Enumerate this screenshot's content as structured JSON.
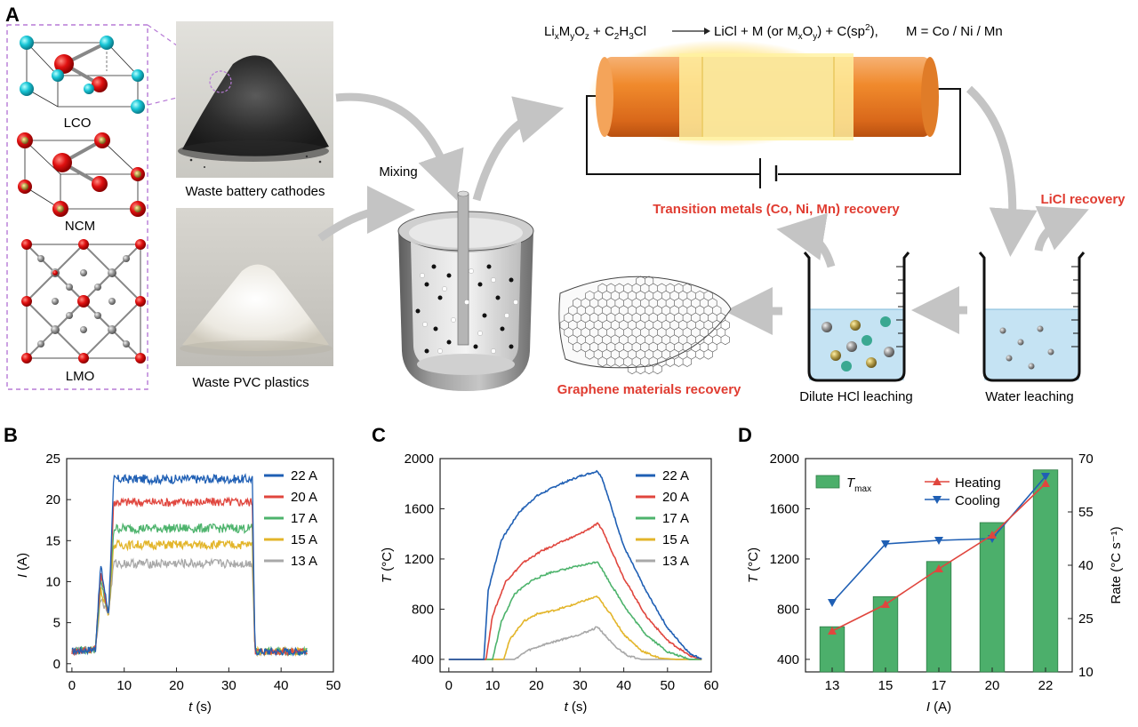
{
  "panels": {
    "A": {
      "letter": "A",
      "structures": [
        "LCO",
        "NCM",
        "LMO"
      ],
      "waste_cathodes": "Waste battery cathodes",
      "waste_pvc": "Waste PVC plastics",
      "mixing": "Mixing",
      "equation": {
        "li": "Li",
        "x1": "x",
        "m": "M",
        "y1": "y",
        "o": "O",
        "z1": "z",
        "plus_c": " + C",
        "c_sub": "2",
        "h": "H",
        "h_sub": "3",
        "cl": "Cl",
        "products_a": "LiCl + M (or M",
        "px": "x",
        "po": "O",
        "py": "y",
        "products_b": ") + C(sp",
        "sp2": "2",
        "products_c": "),",
        "m_def": "M = Co / Ni / Mn"
      },
      "transition_metals": "Transition metals (Co, Ni, Mn) recovery",
      "licl_recovery": "LiCl recovery",
      "graphene_recovery": "Graphene materials recovery",
      "dilute_hcl": "Dilute HCl leaching",
      "water_leaching": "Water leaching"
    },
    "B": {
      "letter": "B"
    },
    "C": {
      "letter": "C"
    },
    "D": {
      "letter": "D"
    }
  },
  "colors": {
    "s22": "#1f5fb4",
    "s20": "#e0463e",
    "s17": "#4db36c",
    "s15": "#e3b52a",
    "s13": "#a8a8a8",
    "bar": "#4caf6b",
    "heating": "#e0463e",
    "cooling": "#1f5fb4",
    "recovery_text": "#e03c31"
  },
  "chart_data": [
    {
      "type": "line",
      "xlabel": "t (s)",
      "ylabel": "I (A)",
      "x_var": "t",
      "x_unit": "(s)",
      "y_var": "I",
      "y_unit": "(A)",
      "xlim": [
        -1,
        50
      ],
      "ylim": [
        -1,
        25
      ],
      "xticks": [
        0,
        10,
        20,
        30,
        40,
        50
      ],
      "yticks": [
        0,
        5,
        10,
        15,
        20,
        25
      ],
      "legend_position": "top-right",
      "series": [
        {
          "name": "22 A",
          "x": [
            0,
            4.5,
            5.5,
            7,
            8,
            20,
            34.5,
            35,
            45
          ],
          "y": [
            1.5,
            1.8,
            12,
            6,
            22.5,
            22.5,
            22.5,
            1.5,
            1.5
          ]
        },
        {
          "name": "20 A",
          "x": [
            0,
            4.5,
            5.5,
            7,
            8,
            20,
            34.5,
            35,
            45
          ],
          "y": [
            1.5,
            1.8,
            11,
            6,
            19.7,
            19.7,
            19.7,
            1.5,
            1.5
          ]
        },
        {
          "name": "17 A",
          "x": [
            0,
            4.5,
            5.5,
            7,
            8,
            20,
            34.5,
            35,
            45
          ],
          "y": [
            1.5,
            1.8,
            10,
            6,
            16.5,
            16.5,
            16.5,
            1.5,
            1.5
          ]
        },
        {
          "name": "15 A",
          "x": [
            0,
            4.5,
            5.5,
            7,
            8,
            20,
            34.5,
            35,
            45
          ],
          "y": [
            1.5,
            1.8,
            9,
            6,
            14.5,
            14.5,
            14.5,
            1.5,
            1.5
          ]
        },
        {
          "name": "13 A",
          "x": [
            0,
            4.5,
            5.5,
            7,
            8,
            20,
            34.5,
            35,
            45
          ],
          "y": [
            1.5,
            1.8,
            8,
            6,
            12.2,
            12.2,
            12.2,
            1.5,
            1.5
          ]
        }
      ]
    },
    {
      "type": "line",
      "xlabel": "t (s)",
      "ylabel": "T (°C)",
      "x_var": "t",
      "x_unit": "(s)",
      "y_var": "T",
      "y_unit": "(°C)",
      "xlim": [
        -2,
        60
      ],
      "ylim": [
        300,
        2000
      ],
      "xticks": [
        0,
        10,
        20,
        30,
        40,
        50,
        60
      ],
      "yticks": [
        400,
        800,
        1200,
        1600,
        2000
      ],
      "legend_position": "top-right",
      "series": [
        {
          "name": "22 A",
          "x": [
            0,
            8,
            9,
            12,
            16,
            20,
            25,
            30,
            34,
            35,
            40,
            45,
            50,
            55,
            58
          ],
          "y": [
            400,
            400,
            950,
            1350,
            1570,
            1700,
            1790,
            1860,
            1900,
            1850,
            1300,
            950,
            650,
            450,
            400
          ]
        },
        {
          "name": "20 A",
          "x": [
            0,
            8.5,
            10,
            13,
            17,
            21,
            26,
            30,
            34,
            35,
            40,
            45,
            50,
            55,
            58
          ],
          "y": [
            400,
            400,
            750,
            1020,
            1170,
            1260,
            1340,
            1400,
            1480,
            1440,
            1050,
            750,
            550,
            430,
            400
          ]
        },
        {
          "name": "17 A",
          "x": [
            0,
            10,
            12,
            15,
            19,
            23,
            28,
            33,
            34,
            37,
            41,
            45,
            50,
            55
          ],
          "y": [
            400,
            400,
            700,
            920,
            1030,
            1090,
            1130,
            1170,
            1180,
            1000,
            780,
            600,
            460,
            400
          ]
        },
        {
          "name": "15 A",
          "x": [
            0,
            12.5,
            14,
            17,
            20,
            24,
            28,
            32,
            34,
            37,
            40,
            44,
            48,
            52
          ],
          "y": [
            400,
            400,
            560,
            700,
            760,
            790,
            830,
            880,
            900,
            760,
            600,
            470,
            410,
            400
          ]
        },
        {
          "name": "13 A",
          "x": [
            0,
            15,
            18,
            22,
            26,
            30,
            33,
            34,
            36,
            38,
            41,
            44,
            48
          ],
          "y": [
            400,
            400,
            470,
            520,
            560,
            600,
            640,
            660,
            580,
            500,
            430,
            400,
            400
          ]
        }
      ]
    },
    {
      "type": "bar",
      "xlabel": "I (A)",
      "ylabel": "T (°C)",
      "ylabel_right": "Rate (°C s⁻¹)",
      "x_var": "I",
      "x_unit": "(A)",
      "y_var": "T",
      "y_unit": "(°C)",
      "categories": [
        "13",
        "15",
        "17",
        "20",
        "22"
      ],
      "ylim": [
        300,
        2000
      ],
      "yticks": [
        400,
        800,
        1200,
        1600,
        2000
      ],
      "ylim_right": [
        10,
        70
      ],
      "yticks_right": [
        10,
        25,
        40,
        55,
        70
      ],
      "legend_bar": {
        "t": "T",
        "sub": "max"
      },
      "series": [
        {
          "name": "T_max",
          "values": [
            660,
            900,
            1180,
            1490,
            1910
          ]
        },
        {
          "name": "Heating",
          "axis": "right",
          "values": [
            21.5,
            29,
            39,
            48.5,
            63
          ]
        },
        {
          "name": "Cooling",
          "axis": "right",
          "values": [
            29.5,
            46,
            47,
            47.5,
            65
          ]
        }
      ]
    }
  ]
}
